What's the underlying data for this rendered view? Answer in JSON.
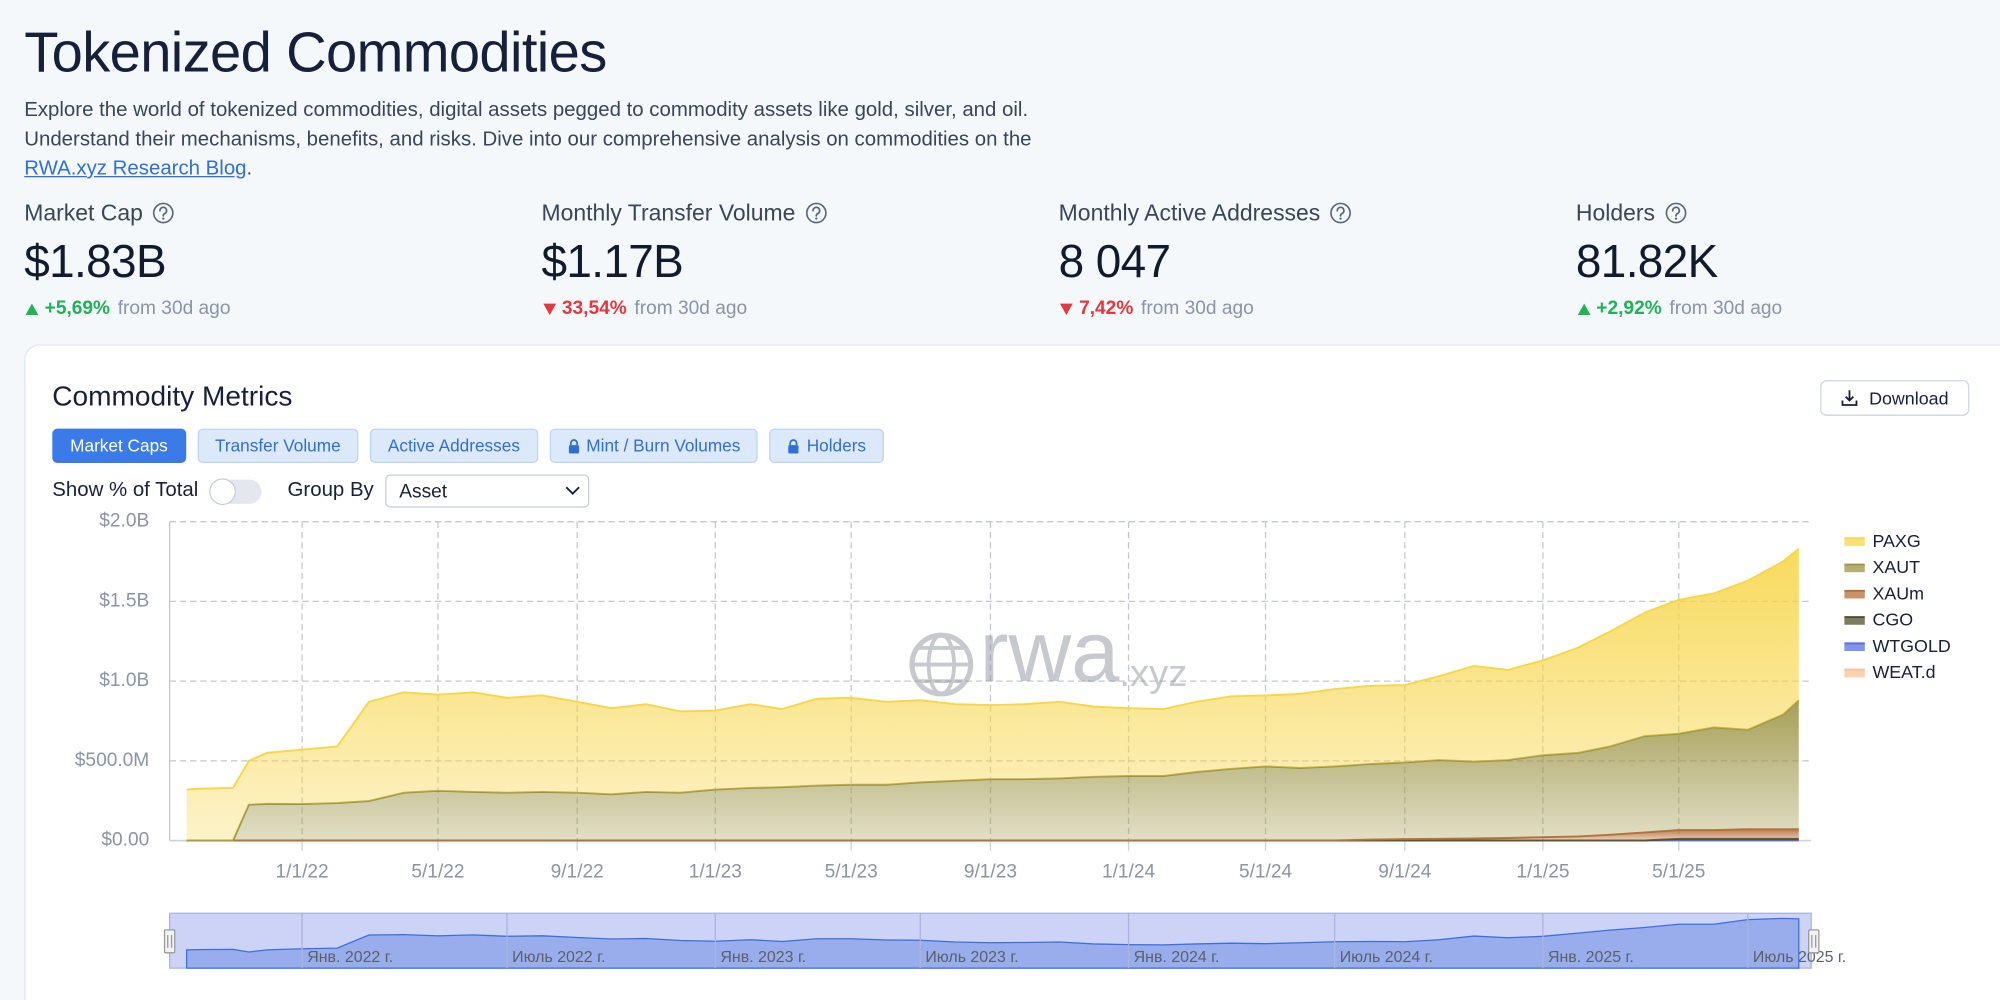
{
  "header": {
    "title": "Tokenized Commodities",
    "description": {
      "text": "Explore the world of tokenized commodities, digital assets pegged to commodity assets like gold, silver, and oil. Understand their mechanisms, benefits, and risks. Dive into our comprehensive analysis on commodities on the ",
      "link": "RWA.xyz Research Blog",
      "end": "."
    }
  },
  "metrics": [
    {
      "label": "Market Cap",
      "value": "$1.83B",
      "change": "+5,69%",
      "direction": "up",
      "note": "from 30d ago"
    },
    {
      "label": "Monthly Transfer Volume",
      "value": "$1.17B",
      "change": "33,54%",
      "direction": "down",
      "note": "from 30d ago"
    },
    {
      "label": "Monthly Active Addresses",
      "value": "8 047",
      "change": "7,42%",
      "direction": "down",
      "note": "from 30d ago"
    },
    {
      "label": "Holders",
      "value": "81.82K",
      "change": "+2,92%",
      "direction": "up",
      "note": "from 30d ago"
    }
  ],
  "card": {
    "title": "Commodity Metrics",
    "download": "Download",
    "tabs": [
      {
        "label": "Market Caps",
        "active": true,
        "locked": false
      },
      {
        "label": "Transfer Volume",
        "active": false,
        "locked": false
      },
      {
        "label": "Active Addresses",
        "active": false,
        "locked": false
      },
      {
        "label": "Mint / Burn Volumes",
        "active": false,
        "locked": true
      },
      {
        "label": "Holders",
        "active": false,
        "locked": true
      }
    ],
    "toggle_label": "Show % of Total",
    "toggle_on": false,
    "group_by_label": "Group By",
    "group_by_value": "Asset"
  },
  "chart_data": {
    "type": "stacked-area",
    "stacked": true,
    "grid": true,
    "legend": "right",
    "x": [
      "9/21/21",
      "10/1/21",
      "11/1/21",
      "11/15/21",
      "12/1/21",
      "1/1/22",
      "2/1/22",
      "3/1/22",
      "4/1/22",
      "5/1/22",
      "6/1/22",
      "7/1/22",
      "8/1/22",
      "9/1/22",
      "10/1/22",
      "11/1/22",
      "12/1/22",
      "1/1/23",
      "2/1/23",
      "3/1/23",
      "4/1/23",
      "5/1/23",
      "6/1/23",
      "7/1/23",
      "8/1/23",
      "9/1/23",
      "10/1/23",
      "11/1/23",
      "12/1/23",
      "1/1/24",
      "2/1/24",
      "3/1/24",
      "4/1/24",
      "5/1/24",
      "6/1/24",
      "7/1/24",
      "8/1/24",
      "9/1/24",
      "10/1/24",
      "11/1/24",
      "12/1/24",
      "1/1/25",
      "2/1/25",
      "3/1/25",
      "4/1/25",
      "5/1/25",
      "6/1/25",
      "7/1/25",
      "8/1/25",
      "8/15/25"
    ],
    "series": [
      {
        "name": "PAXG",
        "color": "#f7d64a",
        "values": [
          320000000.0,
          325000000.0,
          330000000.0,
          275000000.0,
          320000000.0,
          341000000.0,
          355000000.0,
          622000000.0,
          630000000.0,
          603000000.0,
          625000000.0,
          595000000.0,
          605000000.0,
          570000000.0,
          540000000.0,
          550000000.0,
          510000000.0,
          495000000.0,
          525000000.0,
          490000000.0,
          545000000.0,
          545000000.0,
          520000000.0,
          515000000.0,
          480000000.0,
          465000000.0,
          470000000.0,
          480000000.0,
          440000000.0,
          425000000.0,
          420000000.0,
          440000000.0,
          455000000.0,
          445000000.0,
          465000000.0,
          485000000.0,
          490000000.0,
          485000000.0,
          525000000.0,
          600000000.0,
          565000000.0,
          595000000.0,
          660000000.0,
          720000000.0,
          775000000.0,
          840000000.0,
          840000000.0,
          935000000.0,
          960000000.0,
          950000000.0
        ]
      },
      {
        "name": "XAUT",
        "color": "#9c9444",
        "values": [
          0,
          0,
          0,
          225000000.0,
          230000000.0,
          229000000.0,
          235000000.0,
          248000000.0,
          300000000.0,
          312000000.0,
          305000000.0,
          300000000.0,
          305000000.0,
          299000000.0,
          289000000.0,
          304000000.0,
          299000000.0,
          319000000.0,
          329000000.0,
          334000000.0,
          344000000.0,
          349000000.0,
          349000000.0,
          364000000.0,
          374000000.0,
          384000000.0,
          384000000.0,
          389000000.0,
          399000000.0,
          404000000.0,
          404000000.0,
          429000000.0,
          449000000.0,
          464000000.0,
          454000000.0,
          464000000.0,
          474000000.0,
          481000000.0,
          494000000.0,
          482000000.0,
          489000000.0,
          514000000.0,
          524000000.0,
          554000000.0,
          604000000.0,
          604000000.0,
          644000000.0,
          624000000.0,
          719000000.0,
          809000000.0
        ]
      },
      {
        "name": "XAUm",
        "color": "#b66d38",
        "values": [
          0,
          0,
          0,
          0,
          0,
          0,
          0,
          0,
          0,
          0,
          0,
          0,
          0,
          0,
          0,
          0,
          0,
          0,
          0,
          0,
          0,
          0,
          0,
          0,
          0,
          0,
          0,
          0,
          0,
          0,
          0,
          0,
          0,
          0,
          0,
          0,
          5000000.0,
          8000000.0,
          10000000.0,
          12000000.0,
          15000000.0,
          20000000.0,
          25000000.0,
          35000000.0,
          50000000.0,
          55000000.0,
          55000000.0,
          60000000.0,
          60000000.0,
          60000000.0
        ]
      },
      {
        "name": "CGO",
        "color": "#4e512c",
        "values": [
          0,
          0,
          0,
          0,
          0,
          0,
          0,
          0,
          0,
          0,
          0,
          0,
          0,
          0,
          0,
          0,
          0,
          0,
          0,
          0,
          0,
          0,
          0,
          0,
          0,
          0,
          0,
          0,
          0,
          0,
          0,
          0,
          0,
          0,
          0,
          0,
          0,
          0,
          0,
          0,
          0,
          0,
          0,
          0,
          0,
          10000000.0,
          10000000.0,
          10000000.0,
          10000000.0,
          10000000.0
        ]
      },
      {
        "name": "WTGOLD",
        "color": "#5a6fe6",
        "values": [
          0,
          0,
          0,
          0,
          0,
          0,
          0,
          0,
          0,
          0,
          0,
          0,
          0,
          1000000.0,
          1000000.0,
          1000000.0,
          1000000.0,
          1000000.0,
          1000000.0,
          1000000.0,
          1000000.0,
          1000000.0,
          1000000.0,
          1000000.0,
          1000000.0,
          1000000.0,
          1000000.0,
          1000000.0,
          1000000.0,
          1000000.0,
          1000000.0,
          1000000.0,
          1000000.0,
          1000000.0,
          1000000.0,
          1000000.0,
          1000000.0,
          1000000.0,
          1000000.0,
          1000000.0,
          1000000.0,
          1000000.0,
          1000000.0,
          1000000.0,
          1000000.0,
          1000000.0,
          1000000.0,
          1000000.0,
          1000000.0,
          1000000.0
        ]
      },
      {
        "name": "WEAT.d",
        "color": "#f5c39a",
        "values": [
          0,
          0,
          0,
          0,
          0,
          0,
          0,
          0,
          0,
          0,
          0,
          0,
          0,
          0,
          0,
          0,
          0,
          0,
          0,
          0,
          0,
          0,
          0,
          0,
          0,
          0,
          0,
          0,
          0,
          0,
          0,
          0,
          0,
          0,
          0,
          0,
          0,
          0,
          0,
          0,
          0,
          0,
          0,
          0,
          0,
          0,
          0,
          0,
          0,
          0
        ]
      }
    ],
    "xlim": [
      "9/6/21",
      "8/26/25"
    ],
    "xticks": [
      "1/1/22",
      "5/1/22",
      "9/1/22",
      "1/1/23",
      "5/1/23",
      "9/1/23",
      "1/1/24",
      "5/1/24",
      "9/1/24",
      "1/1/25",
      "5/1/25"
    ],
    "ylim": [
      0,
      2000000000
    ],
    "yticks": [
      {
        "value": 0,
        "label": "$0.00"
      },
      {
        "value": 500000000,
        "label": "$500.0M"
      },
      {
        "value": 1000000000,
        "label": "$1.0B"
      },
      {
        "value": 1500000000,
        "label": "$1.5B"
      },
      {
        "value": 2000000000,
        "label": "$2.0B"
      }
    ],
    "watermark": {
      "brand": "rwa",
      "suffix": ".xyz"
    },
    "navigator": {
      "ticks": [
        {
          "value": "1/1/22",
          "label": "Янв. 2022 г."
        },
        {
          "value": "7/1/22",
          "label": "Июль 2022 г."
        },
        {
          "value": "1/1/23",
          "label": "Янв. 2023 г."
        },
        {
          "value": "7/1/23",
          "label": "Июль 2023 г."
        },
        {
          "value": "1/1/24",
          "label": "Янв. 2024 г."
        },
        {
          "value": "7/1/24",
          "label": "Июль 2024 г."
        },
        {
          "value": "1/1/25",
          "label": "Янв. 2025 г."
        },
        {
          "value": "7/1/25",
          "label": "Июль 2025 г."
        }
      ]
    }
  }
}
